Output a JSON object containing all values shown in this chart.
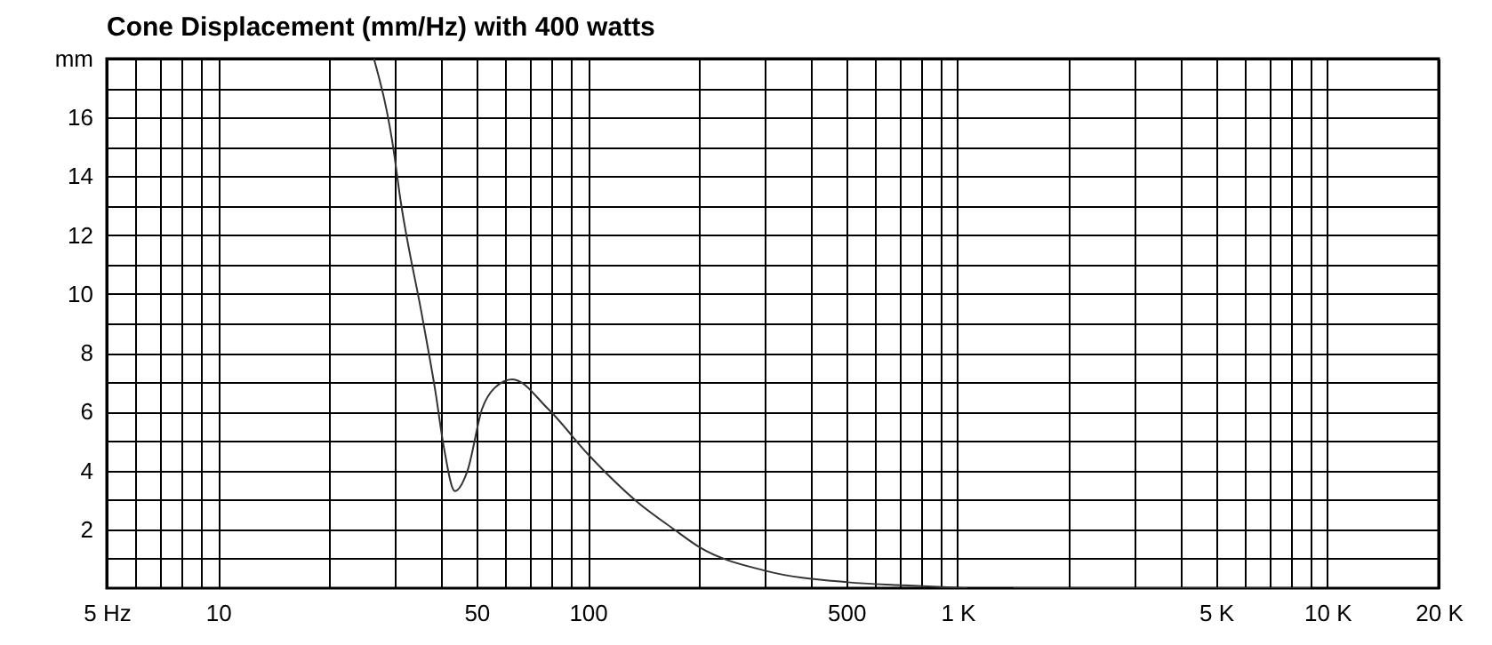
{
  "chart_data": {
    "type": "line",
    "title": "Cone Displacement (mm/Hz) with 400 watts",
    "x": [
      26.4,
      30,
      30.9,
      35.7,
      38.7,
      40.8,
      43.7,
      47.3,
      51.8,
      55.9,
      62.5,
      78,
      101,
      137,
      171,
      200,
      300,
      506,
      705,
      1060,
      1200,
      1414,
      9040
    ],
    "series": [
      {
        "color": "#333333",
        "values": [
          18,
          14.7,
          13.5,
          9.2,
          6.7,
          4.8,
          3.3,
          4.0,
          6.1,
          6.8,
          7.1,
          6.1,
          4.5,
          2.9,
          2.0,
          1.4,
          0.6,
          0.2,
          0.1,
          0,
          null,
          0,
          0
        ]
      }
    ],
    "log": "x",
    "grid": true,
    "marker": "none",
    "line_style": "solid",
    "xlim": [
      5,
      20000
    ],
    "xticks": [
      {
        "value": 5,
        "label": "5 Hz"
      },
      {
        "value": 6,
        "label": null
      },
      {
        "value": 7,
        "label": null
      },
      {
        "value": 8,
        "label": null
      },
      {
        "value": 9,
        "label": null
      },
      10,
      {
        "value": 20,
        "label": null
      },
      {
        "value": 30,
        "label": null
      },
      {
        "value": 40,
        "label": null
      },
      50,
      {
        "value": 60,
        "label": null
      },
      {
        "value": 70,
        "label": null
      },
      {
        "value": 80,
        "label": null
      },
      {
        "value": 90,
        "label": null
      },
      100,
      {
        "value": 200,
        "label": null
      },
      {
        "value": 300,
        "label": null
      },
      {
        "value": 400,
        "label": null
      },
      500,
      {
        "value": 600,
        "label": null
      },
      {
        "value": 700,
        "label": null
      },
      {
        "value": 800,
        "label": null
      },
      {
        "value": 900,
        "label": null
      },
      {
        "value": 1000,
        "label": "1 K"
      },
      {
        "value": 2000,
        "label": null
      },
      {
        "value": 3000,
        "label": null
      },
      {
        "value": 4000,
        "label": null
      },
      {
        "value": 5000,
        "label": "5 K"
      },
      {
        "value": 6000,
        "label": null
      },
      {
        "value": 7000,
        "label": null
      },
      {
        "value": 8000,
        "label": null
      },
      {
        "value": 9000,
        "label": null
      },
      {
        "value": 10000,
        "label": "10 K"
      },
      {
        "value": 20000,
        "label": "20 K"
      }
    ],
    "ylim": [
      0,
      18
    ],
    "yticks": [
      {
        "value": 1,
        "label": null
      },
      2,
      {
        "value": 3,
        "label": null
      },
      4,
      {
        "value": 5,
        "label": null
      },
      6,
      {
        "value": 7,
        "label": null
      },
      8,
      {
        "value": 9,
        "label": null
      },
      10,
      {
        "value": 11,
        "label": null
      },
      12,
      {
        "value": 13,
        "label": null
      },
      14,
      {
        "value": 15,
        "label": null
      },
      16,
      {
        "value": 17,
        "label": null
      },
      {
        "value": 18,
        "label": "mm"
      }
    ]
  }
}
